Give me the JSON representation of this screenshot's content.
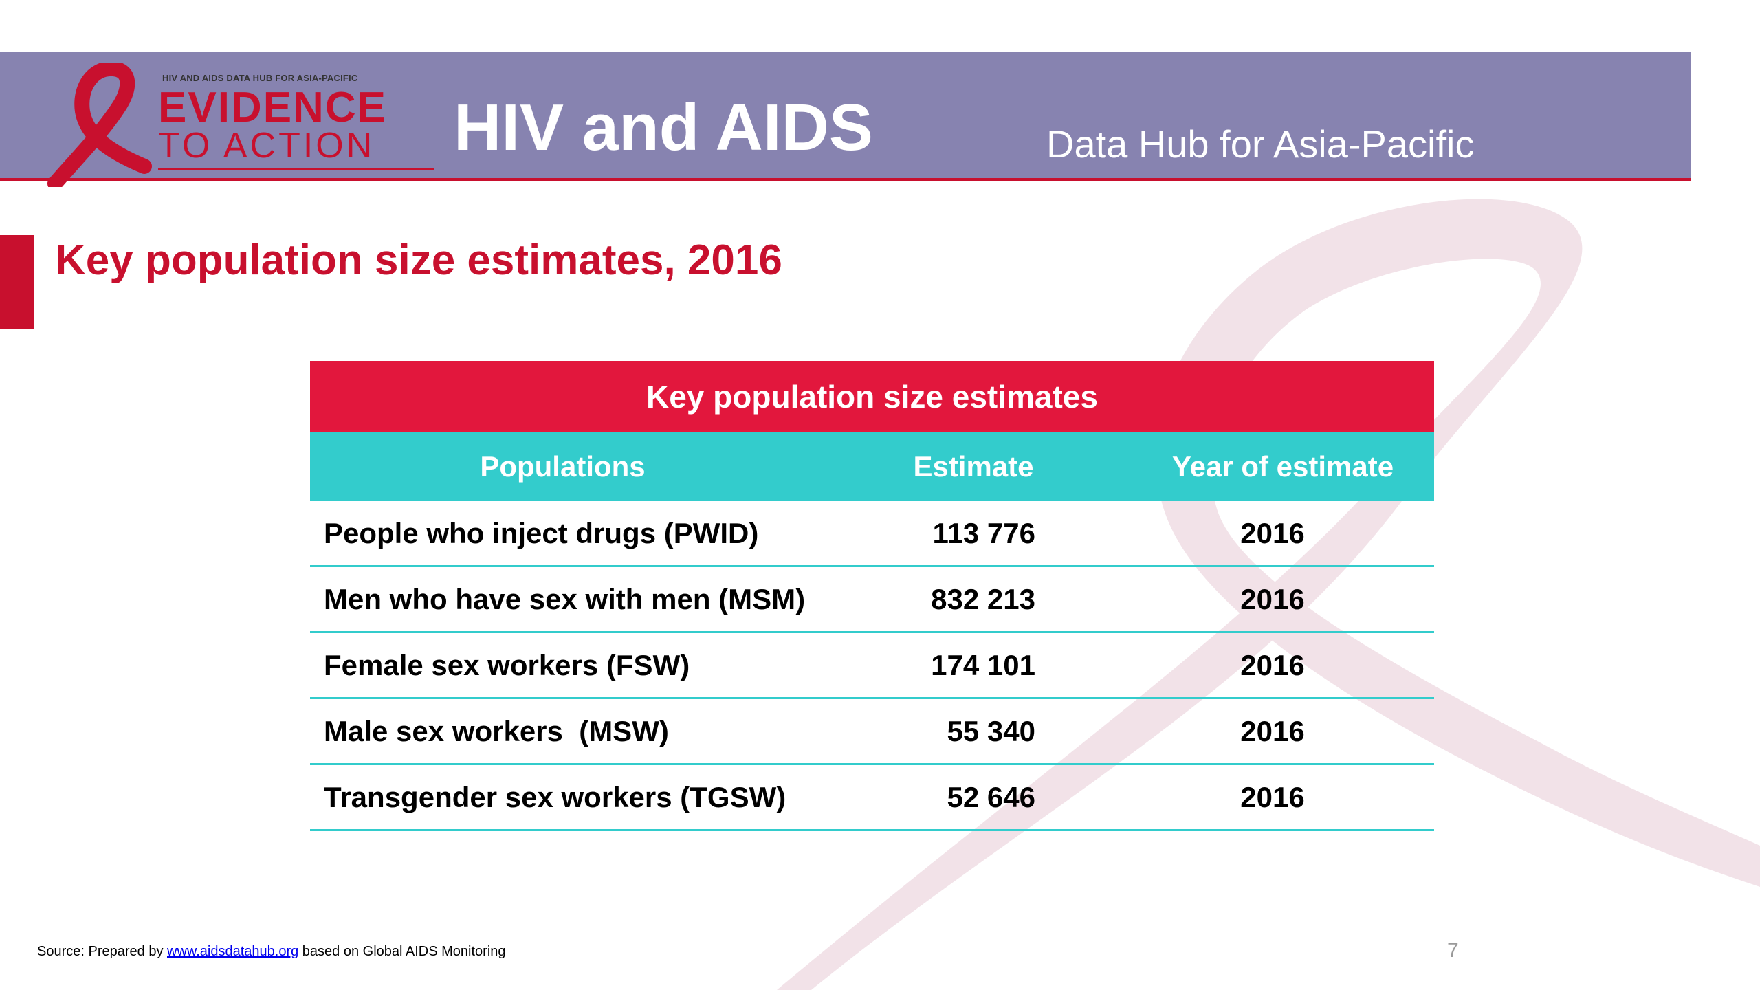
{
  "header": {
    "logo_small": "HIV AND AIDS DATA HUB FOR ASIA-PACIFIC",
    "logo_main": "EVIDENCE",
    "logo_sub": "TO ACTION",
    "title": "HIV and AIDS",
    "subtitle": "Data Hub for Asia-Pacific"
  },
  "slide": {
    "title": "Key population size estimates, 2016"
  },
  "table": {
    "caption": "Key population size estimates",
    "columns": [
      "Populations",
      "Estimate",
      "Year of estimate"
    ],
    "rows": [
      {
        "population": "People who inject drugs (PWID)",
        "estimate": "113 776",
        "year": "2016"
      },
      {
        "population": "Men who have sex with men (MSM)",
        "estimate": "832 213",
        "year": "2016"
      },
      {
        "population": "Female sex workers (FSW)",
        "estimate": "174 101",
        "year": "2016"
      },
      {
        "population": "Male sex workers  (MSW)",
        "estimate": "55 340",
        "year": "2016"
      },
      {
        "population": "Transgender sex workers (TGSW)",
        "estimate": "52 646",
        "year": "2016"
      }
    ]
  },
  "footer": {
    "source_prefix": "Source: Prepared by ",
    "source_link": "www.aidsdatahub.org",
    "source_suffix": " based on Global AIDS Monitoring",
    "page_number": "7"
  },
  "colors": {
    "header_bg": "#8783b0",
    "brand_red": "#c8102e",
    "table_banner": "#e2173d",
    "table_header": "#33cccc",
    "ribbon_watermark": "#f1dfe5"
  }
}
